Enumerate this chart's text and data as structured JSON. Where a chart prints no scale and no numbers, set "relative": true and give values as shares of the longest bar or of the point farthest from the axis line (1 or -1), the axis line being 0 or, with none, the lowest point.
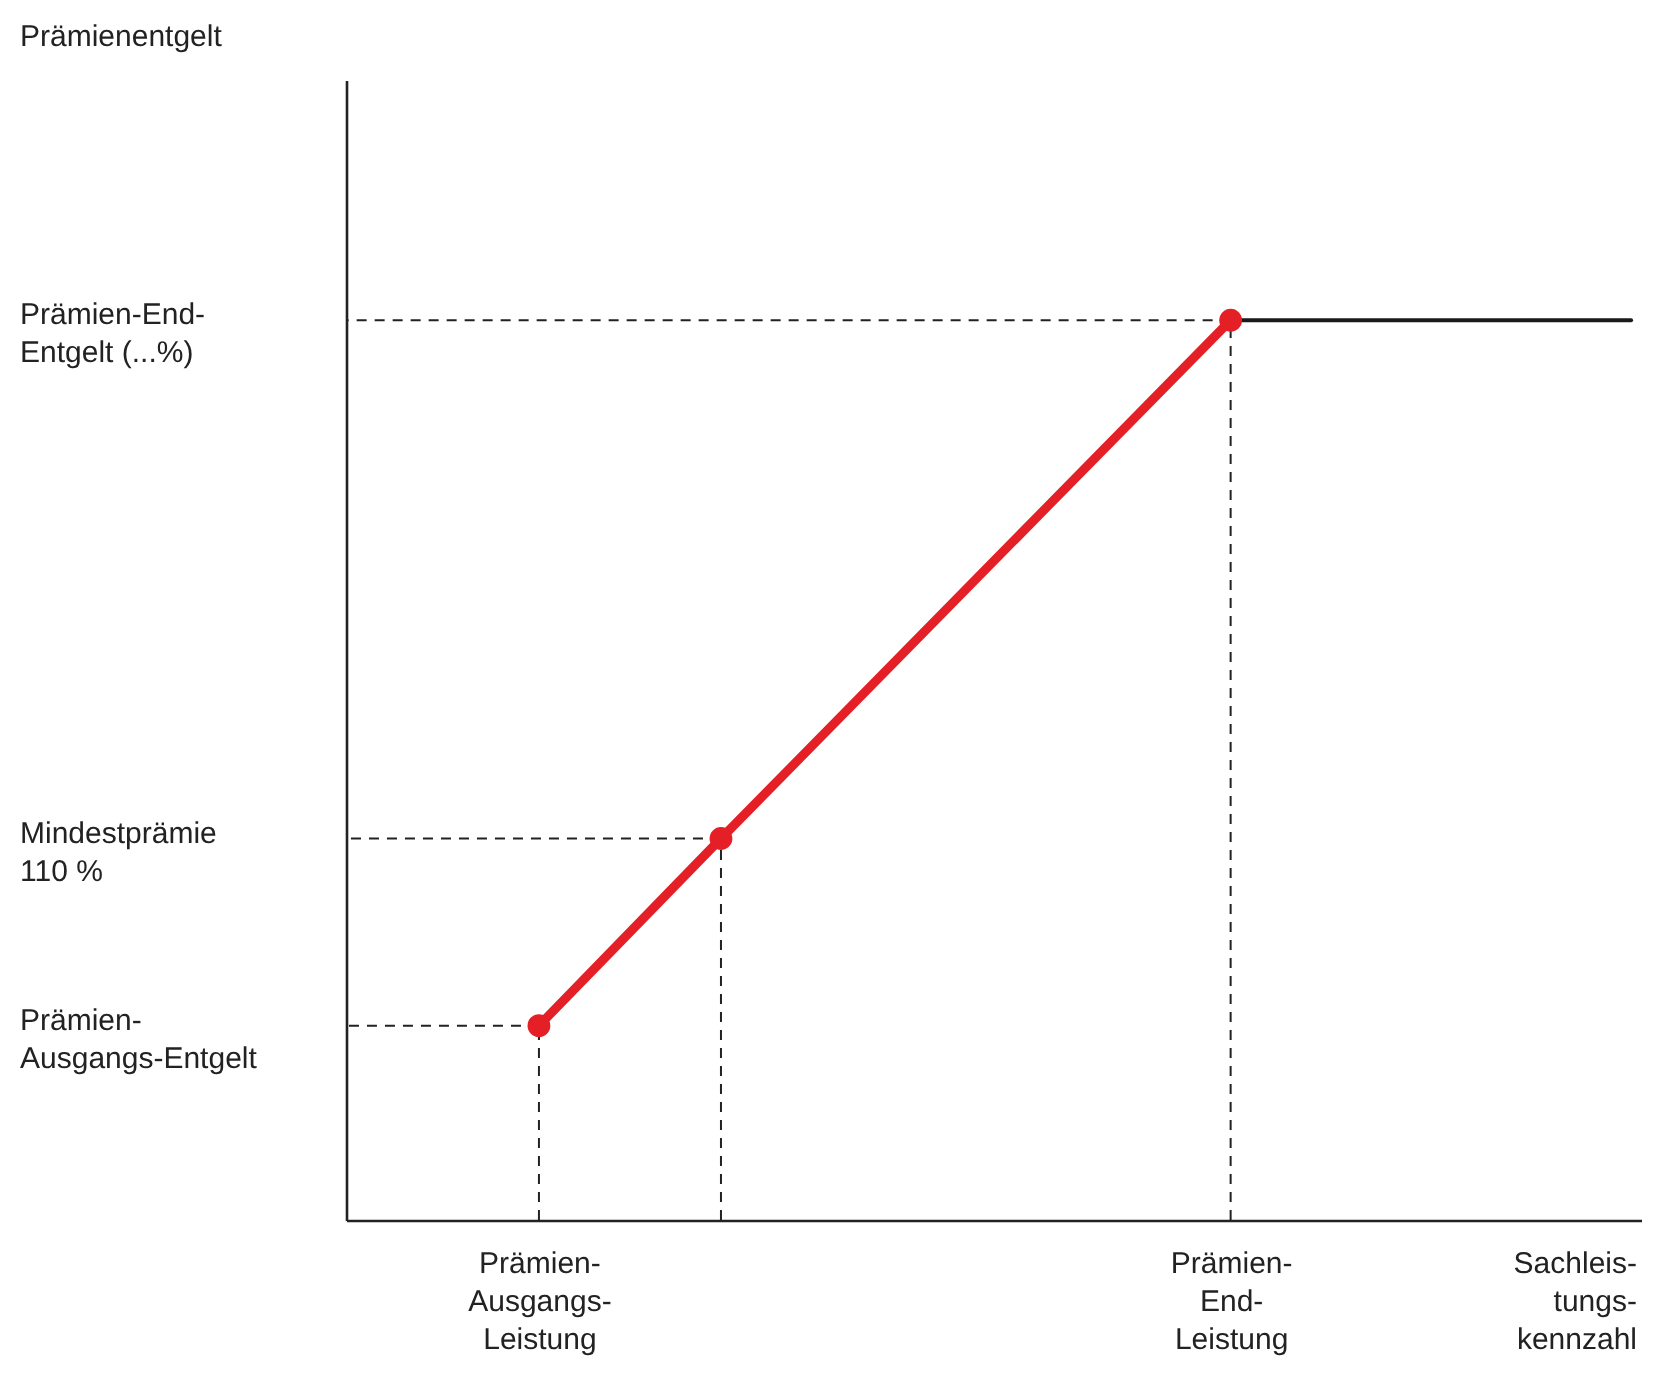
{
  "chart_data": {
    "type": "line",
    "relative": true,
    "xlabel": "Sachleis-\ntungs-\nkennzahl",
    "categories": [
      null,
      null,
      null,
      null,
      null,
      "Prämien-\nAusgangs-\nLeistung",
      null,
      null,
      null,
      null,
      null,
      null,
      null,
      null,
      null,
      null,
      null,
      null,
      null,
      null,
      null,
      null,
      null,
      null,
      "Prämien-\nEnd-\nLeistung",
      null,
      null,
      null,
      null,
      null,
      null,
      null,
      null,
      null,
      null,
      null
    ],
    "series": [
      {
        "color": "#e41f26",
        "marker": "circle",
        "values": [
          null,
          null,
          null,
          null,
          null,
          0.216,
          null,
          null,
          null,
          null,
          0.424,
          null,
          null,
          null,
          null,
          null,
          null,
          null,
          null,
          null,
          null,
          null,
          null,
          null,
          1,
          null,
          null,
          null,
          null,
          null,
          null,
          null,
          null,
          null,
          null,
          null
        ]
      },
      {
        "color": "#1a1a1a",
        "marker": "none",
        "values": [
          null,
          null,
          null,
          null,
          null,
          null,
          null,
          null,
          null,
          null,
          null,
          null,
          null,
          null,
          null,
          null,
          null,
          null,
          null,
          null,
          null,
          null,
          null,
          null,
          1,
          null,
          null,
          null,
          null,
          null,
          null,
          null,
          null,
          null,
          null,
          1
        ]
      }
    ],
    "annotations": [
      "Prämien-\nAusgangs-Entgelt",
      "Mindestprämie\n110 %",
      "Prämien-End-\nEntgelt (...%)",
      "Prämienentgelt"
    ],
    "grid": false,
    "legend": false
  }
}
